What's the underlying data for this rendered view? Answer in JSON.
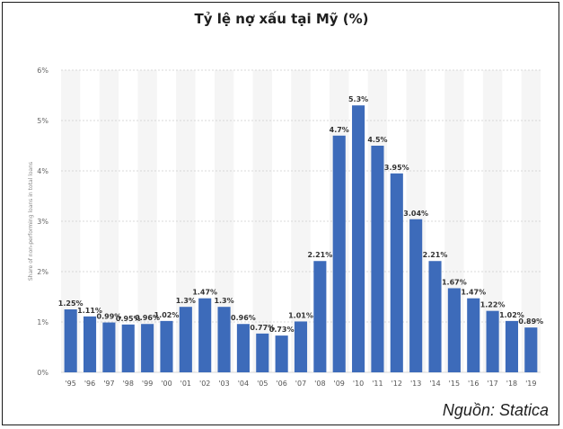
{
  "title": "Tỷ lệ nợ xấu tại Mỹ (%)",
  "source": "Nguồn: Statica",
  "colors": {
    "bar": "#3d6bba",
    "grid": "#d8d8d8",
    "stripe": "#f5f5f5"
  },
  "chart_data": {
    "type": "bar",
    "title": "Tỷ lệ nợ xấu tại Mỹ (%)",
    "xlabel": "",
    "ylabel": "Share of non-performing loans in total loans",
    "ylim": [
      0,
      6
    ],
    "y_ticks": [
      "0%",
      "1%",
      "2%",
      "3%",
      "4%",
      "5%",
      "6%"
    ],
    "y_tick_values": [
      0,
      1,
      2,
      3,
      4,
      5,
      6
    ],
    "categories": [
      "'95",
      "'96",
      "'97",
      "'98",
      "'99",
      "'00",
      "'01",
      "'02",
      "'03",
      "'04",
      "'05",
      "'06",
      "'07",
      "'08",
      "'09",
      "'10",
      "'11",
      "'12",
      "'13",
      "'14",
      "'15",
      "'16",
      "'17",
      "'18",
      "'19"
    ],
    "values": [
      1.25,
      1.11,
      0.99,
      0.95,
      0.96,
      1.02,
      1.3,
      1.47,
      1.3,
      0.96,
      0.77,
      0.73,
      1.01,
      2.21,
      4.7,
      5.3,
      4.5,
      3.95,
      3.04,
      2.21,
      1.67,
      1.47,
      1.22,
      1.02,
      0.89
    ],
    "labels": [
      "1.25%",
      "1.11%",
      "0.99%",
      "0.95%",
      "0.96%",
      "1.02%",
      "1.3%",
      "1.47%",
      "1.3%",
      "0.96%",
      "0.77%",
      "0.73%",
      "1.01%",
      "2.21%",
      "4.7%",
      "5.3%",
      "4.5%",
      "3.95%",
      "3.04%",
      "2.21%",
      "1.67%",
      "1.47%",
      "1.22%",
      "1.02%",
      "0.89%"
    ],
    "grid": true
  }
}
